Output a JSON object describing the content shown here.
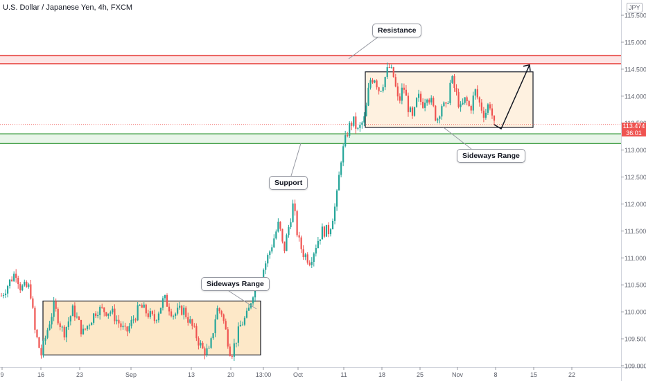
{
  "header": {
    "symbol_title": "U.S. Dollar / Japanese Yen, 4h, FXCM",
    "currency": "JPY"
  },
  "last_price": {
    "value": "113.474",
    "countdown": "36:01"
  },
  "colors": {
    "up": "#26a69a",
    "down": "#ef5350",
    "resistance": "#e53935",
    "resistance_fill": "#fde4e4",
    "support": "#43a047",
    "support_fill": "#e8f5e9",
    "range_fill": "#fde8c8",
    "range_fill_light": "#fef1e0"
  },
  "annotations": {
    "resistance_label": "Resistance",
    "support_label": "Support",
    "sideways_range_1": "Sideways Range",
    "sideways_range_2": "Sideways Range"
  },
  "chart_data": {
    "type": "candlestick",
    "title": "U.S. Dollar / Japanese Yen, 4h, FXCM",
    "xlabel": "",
    "ylabel": "",
    "ylim": [
      109.0,
      115.7
    ],
    "y_ticks": [
      "115.500",
      "115.000",
      "114.500",
      "114.000",
      "113.500",
      "113.000",
      "112.500",
      "112.000",
      "111.500",
      "111.000",
      "110.500",
      "110.000",
      "109.500",
      "109.000"
    ],
    "x_ticks": [
      "9",
      "16",
      "23",
      "Sep",
      "13",
      "20",
      "13:00",
      "Oct",
      "11",
      "18",
      "25",
      "Nov",
      "8",
      "15",
      "22"
    ],
    "grid": false,
    "price_path": [
      {
        "t": 0.0,
        "p": 110.3
      },
      {
        "t": 3.0,
        "p": 110.75
      },
      {
        "t": 4.0,
        "p": 110.45
      },
      {
        "t": 6.0,
        "p": 110.45
      },
      {
        "t": 7.0,
        "p": 109.65
      },
      {
        "t": 8.3,
        "p": 109.2
      },
      {
        "t": 10.0,
        "p": 109.8
      },
      {
        "t": 11.0,
        "p": 110.1
      },
      {
        "t": 13.0,
        "p": 109.6
      },
      {
        "t": 15.0,
        "p": 110.05
      },
      {
        "t": 17.0,
        "p": 109.6
      },
      {
        "t": 20.0,
        "p": 110.05
      },
      {
        "t": 23.0,
        "p": 110.0
      },
      {
        "t": 26.0,
        "p": 109.6
      },
      {
        "t": 29.0,
        "p": 110.1
      },
      {
        "t": 32.0,
        "p": 109.85
      },
      {
        "t": 34.0,
        "p": 110.25
      },
      {
        "t": 36.0,
        "p": 109.95
      },
      {
        "t": 38.0,
        "p": 110.05
      },
      {
        "t": 40.0,
        "p": 109.7
      },
      {
        "t": 42.0,
        "p": 109.3
      },
      {
        "t": 43.5,
        "p": 109.25
      },
      {
        "t": 45.0,
        "p": 110.05
      },
      {
        "t": 46.0,
        "p": 110.0
      },
      {
        "t": 48.0,
        "p": 109.2
      },
      {
        "t": 50.0,
        "p": 109.75
      },
      {
        "t": 51.5,
        "p": 109.95
      },
      {
        "t": 52.5,
        "p": 110.35
      },
      {
        "t": 54.0,
        "p": 110.6
      },
      {
        "t": 56.0,
        "p": 111.1
      },
      {
        "t": 58.0,
        "p": 111.65
      },
      {
        "t": 59.0,
        "p": 111.1
      },
      {
        "t": 61.0,
        "p": 112.0
      },
      {
        "t": 62.0,
        "p": 111.35
      },
      {
        "t": 63.0,
        "p": 111.1
      },
      {
        "t": 64.5,
        "p": 110.95
      },
      {
        "t": 66.0,
        "p": 111.3
      },
      {
        "t": 67.0,
        "p": 111.5
      },
      {
        "t": 68.5,
        "p": 111.5
      },
      {
        "t": 70.0,
        "p": 112.05
      },
      {
        "t": 71.0,
        "p": 112.85
      },
      {
        "t": 72.5,
        "p": 113.4
      },
      {
        "t": 73.5,
        "p": 113.55
      },
      {
        "t": 74.5,
        "p": 113.35
      },
      {
        "t": 76.0,
        "p": 113.6
      },
      {
        "t": 77.0,
        "p": 114.3
      },
      {
        "t": 78.0,
        "p": 114.35
      },
      {
        "t": 79.0,
        "p": 114.1
      },
      {
        "t": 80.0,
        "p": 114.3
      },
      {
        "t": 81.0,
        "p": 114.55
      },
      {
        "t": 82.0,
        "p": 114.35
      },
      {
        "t": 83.0,
        "p": 113.85
      },
      {
        "t": 84.0,
        "p": 114.2
      },
      {
        "t": 85.0,
        "p": 113.8
      },
      {
        "t": 86.0,
        "p": 113.55
      },
      {
        "t": 87.0,
        "p": 114.0
      },
      {
        "t": 88.0,
        "p": 113.85
      },
      {
        "t": 89.0,
        "p": 114.05
      },
      {
        "t": 90.0,
        "p": 113.85
      },
      {
        "t": 91.0,
        "p": 113.55
      },
      {
        "t": 92.0,
        "p": 113.85
      },
      {
        "t": 93.0,
        "p": 113.75
      },
      {
        "t": 94.0,
        "p": 114.35
      },
      {
        "t": 95.0,
        "p": 114.05
      },
      {
        "t": 96.0,
        "p": 113.75
      },
      {
        "t": 97.0,
        "p": 113.95
      },
      {
        "t": 98.0,
        "p": 113.75
      },
      {
        "t": 99.0,
        "p": 114.1
      },
      {
        "t": 100.0,
        "p": 113.85
      },
      {
        "t": 101.0,
        "p": 113.65
      },
      {
        "t": 102.0,
        "p": 113.9
      },
      {
        "t": 103.0,
        "p": 113.45
      }
    ],
    "resistance_zone": [
      114.6,
      114.75
    ],
    "support_zone": [
      113.12,
      113.3
    ],
    "last_price": 113.474,
    "sideways_range_1": {
      "price_low": 109.2,
      "price_high": 110.2
    },
    "sideways_range_2": {
      "price_low": 113.42,
      "price_high": 114.45
    },
    "projection": {
      "from": 113.42,
      "to": 114.58
    }
  }
}
